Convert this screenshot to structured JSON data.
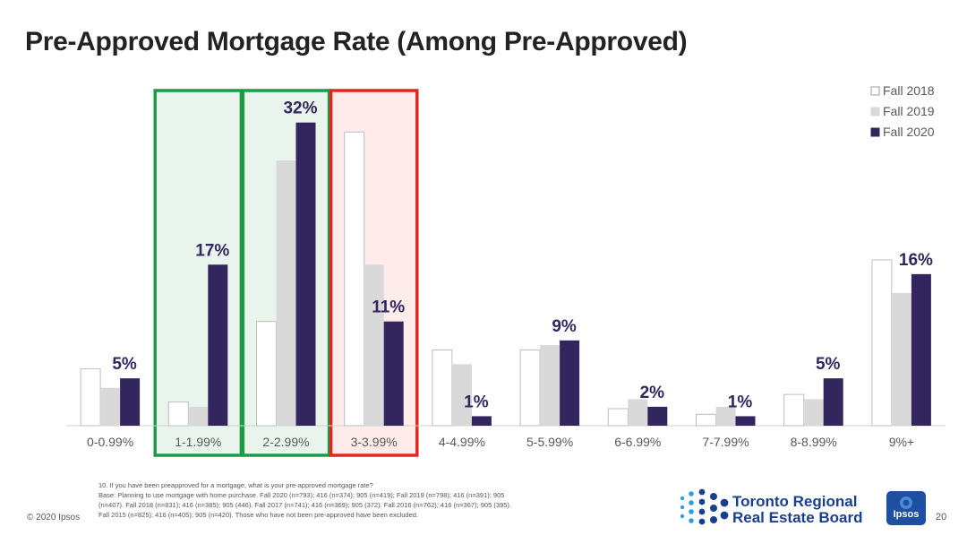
{
  "page": {
    "title": "Pre-Approved Mortgage Rate (Among Pre-Approved)",
    "footnote": [
      "10. If you have been preapproved for a mortgage, what is your pre-approved mortgage rate?",
      "Base: Planning to use mortgage with home purchase. Fall 2020 (n=793); 416 (n=374); 905 (n=419); Fall 2019 (n=798); 416 (n=391); 905",
      "(n=407). Fall 2018 (n=831); 416 (n=385); 905 (446). Fall 2017 (n=741); 416 (n=369); 905 (372). Fall 2016 (n=762); 416 (n=367); 905 (395).",
      "Fall 2015 (n=825); 416 (n=405); 905 (n=420). Those who have not been pre-approved have been excluded."
    ],
    "copyright": "© 2020 Ipsos",
    "logo_org_line1": "Toronto Regional",
    "logo_org_line2": "Real Estate Board",
    "logo_brand": "Ipsos",
    "page_number": "20"
  },
  "chart_data": {
    "type": "bar",
    "categories": [
      "0-0.99%",
      "1-1.99%",
      "2-2.99%",
      "3-3.99%",
      "4-4.99%",
      "5-5.99%",
      "6-6.99%",
      "7-7.99%",
      "8-8.99%",
      "9%+"
    ],
    "series": [
      {
        "name": "Fall 2018",
        "values": [
          6,
          2.5,
          11,
          31,
          8,
          8,
          1.8,
          1.2,
          3.3,
          17.5
        ]
      },
      {
        "name": "Fall 2019",
        "values": [
          4,
          2,
          28,
          17,
          6.5,
          8.5,
          2.8,
          2,
          2.8,
          14
        ]
      },
      {
        "name": "Fall 2020",
        "values": [
          5,
          17,
          32,
          11,
          1,
          9,
          2,
          1,
          5,
          16
        ]
      }
    ],
    "data_labels": [
      "5%",
      "17%",
      "32%",
      "11%",
      "1%",
      "9%",
      "2%",
      "1%",
      "5%",
      "16%"
    ],
    "ylim": [
      0,
      35
    ],
    "legend_position": "top-right",
    "highlights": [
      {
        "categories": [
          "1-1.99%"
        ],
        "color": "#1e9b48"
      },
      {
        "categories": [
          "2-2.99%"
        ],
        "color": "#1e9b48"
      },
      {
        "categories": [
          "3-3.99%"
        ],
        "color": "#e0281f"
      }
    ],
    "colors": {
      "Fall 2018": "#ffffff",
      "Fall 2019": "#d9d9d9",
      "Fall 2020": "#33265e",
      "label_text": "#33265e",
      "green_fill": "#e9f5ec",
      "red_fill": "#fdecea"
    }
  }
}
